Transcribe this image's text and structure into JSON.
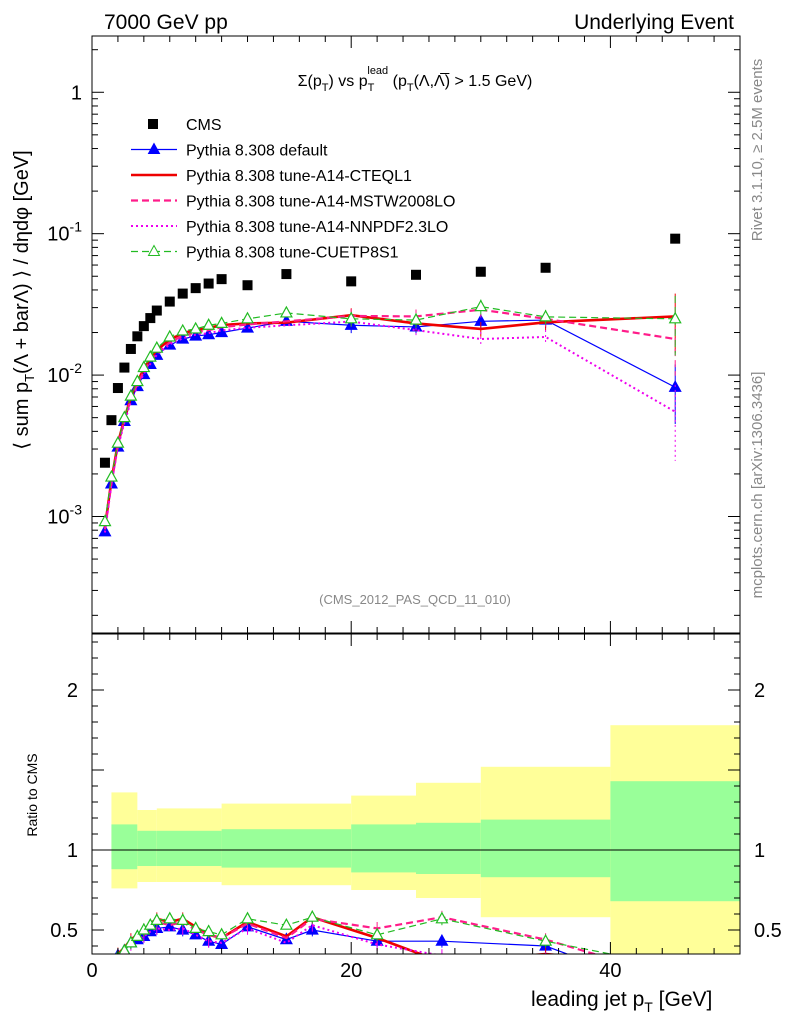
{
  "header": {
    "left": "7000 GeV pp",
    "right": "Underlying Event"
  },
  "side_text": {
    "rivet": "Rivet 3.1.10, ≥ 2.5M events",
    "mcplots": "mcplots.cern.ch [arXiv:1306.3436]"
  },
  "chart_data": [
    {
      "type": "scatter",
      "panel": "main",
      "title": "Σ(p_T) vs p_T^lead (p_T(Λ,Λ̅) > 1.5 GeV)",
      "ylabel": "⟨ sum p_T(Λ + barΛ) ⟩ / dηdφ [GeV]",
      "xlabel": "leading jet p_T [GeV]",
      "analysis": "(CMS_2012_PAS_QCD_11_010)",
      "xlim": [
        0,
        50
      ],
      "ylim": [
        0.00015,
        2.5
      ],
      "y_scale": "log",
      "y_tick_labels": [
        "10^-3",
        "10^-2",
        "10^-1",
        "1"
      ],
      "x_tick_labels": [
        "0",
        "20",
        "40"
      ],
      "legend_position": "top-left",
      "series": [
        {
          "name": "CMS",
          "color": "#000000",
          "style": "square",
          "x": [
            1,
            1.5,
            2,
            2.5,
            3,
            3.5,
            4,
            4.5,
            5,
            6,
            7,
            8,
            9,
            10,
            12,
            15,
            20,
            25,
            30,
            35,
            45
          ],
          "y": [
            0.0024,
            0.0048,
            0.0081,
            0.0113,
            0.0153,
            0.0188,
            0.0222,
            0.0253,
            0.0286,
            0.0331,
            0.0377,
            0.0412,
            0.0444,
            0.0477,
            0.0432,
            0.0518,
            0.046,
            0.0512,
            0.0538,
            0.0574,
            0.0922
          ]
        },
        {
          "name": "Pythia 8.308 default",
          "color": "#0000ff",
          "style": "solid-triangle",
          "x": [
            1,
            1.5,
            2,
            2.5,
            3,
            3.5,
            4,
            4.5,
            5,
            6,
            7,
            8,
            9,
            10,
            12,
            15,
            20,
            25,
            30,
            35,
            45
          ],
          "y": [
            0.00078,
            0.0017,
            0.0031,
            0.0047,
            0.0066,
            0.0083,
            0.0101,
            0.0119,
            0.0138,
            0.0163,
            0.018,
            0.0189,
            0.0193,
            0.02,
            0.0215,
            0.024,
            0.0225,
            0.0219,
            0.024,
            0.0245,
            0.0082
          ]
        },
        {
          "name": "Pythia 8.308 tune-A14-CTEQL1",
          "color": "#ee0000",
          "style": "thick-solid",
          "x": [
            1,
            1.5,
            2,
            2.5,
            3,
            3.5,
            4,
            4.5,
            5,
            6,
            7,
            8,
            9,
            10,
            12,
            15,
            20,
            25,
            30,
            35,
            45
          ],
          "y": [
            0.00084,
            0.0018,
            0.0033,
            0.0049,
            0.007,
            0.0089,
            0.0111,
            0.0131,
            0.015,
            0.0178,
            0.0198,
            0.0208,
            0.0215,
            0.0226,
            0.0232,
            0.0235,
            0.0265,
            0.0232,
            0.0212,
            0.0236,
            0.026
          ]
        },
        {
          "name": "Pythia 8.308 tune-A14-MSTW2008LO",
          "color": "#ff1c8a",
          "style": "dashed",
          "x": [
            1,
            1.5,
            2,
            2.5,
            3,
            3.5,
            4,
            4.5,
            5,
            6,
            7,
            8,
            9,
            10,
            12,
            15,
            20,
            25,
            30,
            35,
            45
          ],
          "y": [
            0.00081,
            0.0017,
            0.0032,
            0.0048,
            0.0068,
            0.0086,
            0.0106,
            0.0125,
            0.0143,
            0.017,
            0.019,
            0.02,
            0.0208,
            0.0218,
            0.0228,
            0.024,
            0.0262,
            0.026,
            0.029,
            0.025,
            0.018
          ]
        },
        {
          "name": "Pythia 8.308 tune-A14-NNPDF2.3LO",
          "color": "#ee00ee",
          "style": "dotted",
          "x": [
            1,
            1.5,
            2,
            2.5,
            3,
            3.5,
            4,
            4.5,
            5,
            6,
            7,
            8,
            9,
            10,
            12,
            15,
            20,
            25,
            30,
            35,
            45
          ],
          "y": [
            0.00077,
            0.0017,
            0.0031,
            0.0046,
            0.0065,
            0.0083,
            0.0102,
            0.012,
            0.0139,
            0.0165,
            0.0182,
            0.0193,
            0.0198,
            0.0207,
            0.0216,
            0.0225,
            0.0239,
            0.0208,
            0.018,
            0.0186,
            0.0055
          ]
        },
        {
          "name": "Pythia 8.308 tune-CUETP8S1",
          "color": "#22bb22",
          "style": "dashed-open-triangle",
          "x": [
            1,
            1.5,
            2,
            2.5,
            3,
            3.5,
            4,
            4.5,
            5,
            6,
            7,
            8,
            9,
            10,
            12,
            15,
            20,
            25,
            30,
            35,
            45
          ],
          "y": [
            0.00092,
            0.0019,
            0.0033,
            0.005,
            0.0071,
            0.009,
            0.0113,
            0.0134,
            0.0155,
            0.0186,
            0.0205,
            0.0212,
            0.0225,
            0.0232,
            0.025,
            0.0275,
            0.025,
            0.0245,
            0.0305,
            0.0258,
            0.025
          ]
        }
      ]
    },
    {
      "type": "line",
      "panel": "ratio",
      "ylabel": "Ratio to CMS",
      "xlabel": "leading jet p_T [GeV]",
      "xlim": [
        0,
        50
      ],
      "ylim": [
        0.35,
        2.35
      ],
      "x_tick_labels": [
        "0",
        "20",
        "40"
      ],
      "y_tick_labels": [
        "0.5",
        "1",
        "2"
      ],
      "band_edges": [
        1.5,
        3.5,
        5,
        10,
        20,
        25,
        30,
        40,
        50
      ],
      "band_stat": [
        [
          0.88,
          1.16
        ],
        [
          0.9,
          1.12
        ],
        [
          0.9,
          1.12
        ],
        [
          0.89,
          1.13
        ],
        [
          0.86,
          1.16
        ],
        [
          0.85,
          1.17
        ],
        [
          0.83,
          1.19
        ],
        [
          0.68,
          1.43
        ]
      ],
      "band_total": [
        [
          0.76,
          1.36
        ],
        [
          0.8,
          1.25
        ],
        [
          0.8,
          1.26
        ],
        [
          0.78,
          1.29
        ],
        [
          0.75,
          1.34
        ],
        [
          0.7,
          1.42
        ],
        [
          0.58,
          1.52
        ],
        [
          0.25,
          1.78
        ]
      ],
      "band_colors": {
        "stat": "#99ff99",
        "total": "#ffff99"
      },
      "series": [
        {
          "name": "Pythia 8.308 default",
          "color": "#0000ff",
          "x": [
            2,
            2.5,
            3,
            3.5,
            4,
            4.5,
            5,
            6,
            7,
            8,
            9,
            10,
            12,
            15,
            17,
            22,
            27,
            35,
            45
          ],
          "y": [
            0.34,
            0.37,
            0.42,
            0.44,
            0.46,
            0.49,
            0.51,
            0.52,
            0.5,
            0.47,
            0.43,
            0.41,
            0.52,
            0.44,
            0.5,
            0.43,
            0.43,
            0.4,
            0.1
          ]
        },
        {
          "name": "Pythia 8.308 tune-A14-CTEQL1",
          "color": "#ee0000",
          "x": [
            2,
            2.5,
            3,
            3.5,
            4,
            4.5,
            5,
            6,
            7,
            8,
            9,
            10,
            12,
            15,
            17,
            22,
            27,
            35,
            45
          ],
          "y": [
            0.35,
            0.39,
            0.44,
            0.47,
            0.5,
            0.54,
            0.57,
            0.55,
            0.57,
            0.52,
            0.47,
            0.45,
            0.55,
            0.46,
            0.58,
            0.45,
            0.3,
            0.35,
            0.28
          ]
        },
        {
          "name": "Pythia 8.308 tune-A14-MSTW2008LO",
          "color": "#ff1c8a",
          "x": [
            2,
            2.5,
            3,
            3.5,
            4,
            4.5,
            5,
            6,
            7,
            8,
            9,
            10,
            12,
            15,
            17,
            22,
            27,
            35,
            45
          ],
          "y": [
            0.34,
            0.38,
            0.43,
            0.46,
            0.49,
            0.52,
            0.55,
            0.53,
            0.55,
            0.5,
            0.47,
            0.45,
            0.54,
            0.45,
            0.57,
            0.51,
            0.58,
            0.44,
            0.2
          ]
        },
        {
          "name": "Pythia 8.308 tune-A14-NNPDF2.3LO",
          "color": "#ee00ee",
          "x": [
            2,
            2.5,
            3,
            3.5,
            4,
            4.5,
            5,
            6,
            7,
            8,
            9,
            10,
            12,
            15,
            17,
            22,
            27,
            35,
            45
          ],
          "y": [
            0.33,
            0.37,
            0.41,
            0.44,
            0.46,
            0.49,
            0.51,
            0.5,
            0.51,
            0.47,
            0.43,
            0.42,
            0.51,
            0.42,
            0.53,
            0.41,
            0.34,
            0.32,
            0.06
          ]
        },
        {
          "name": "Pythia 8.308 tune-CUETP8S1",
          "color": "#22bb22",
          "x": [
            2,
            2.5,
            3,
            3.5,
            4,
            4.5,
            5,
            6,
            7,
            8,
            9,
            10,
            12,
            15,
            17,
            22,
            27,
            35,
            45
          ],
          "y": [
            0.33,
            0.37,
            0.42,
            0.46,
            0.5,
            0.53,
            0.56,
            0.57,
            0.56,
            0.51,
            0.49,
            0.47,
            0.57,
            0.53,
            0.58,
            0.47,
            0.57,
            0.43,
            0.27
          ]
        }
      ]
    }
  ]
}
